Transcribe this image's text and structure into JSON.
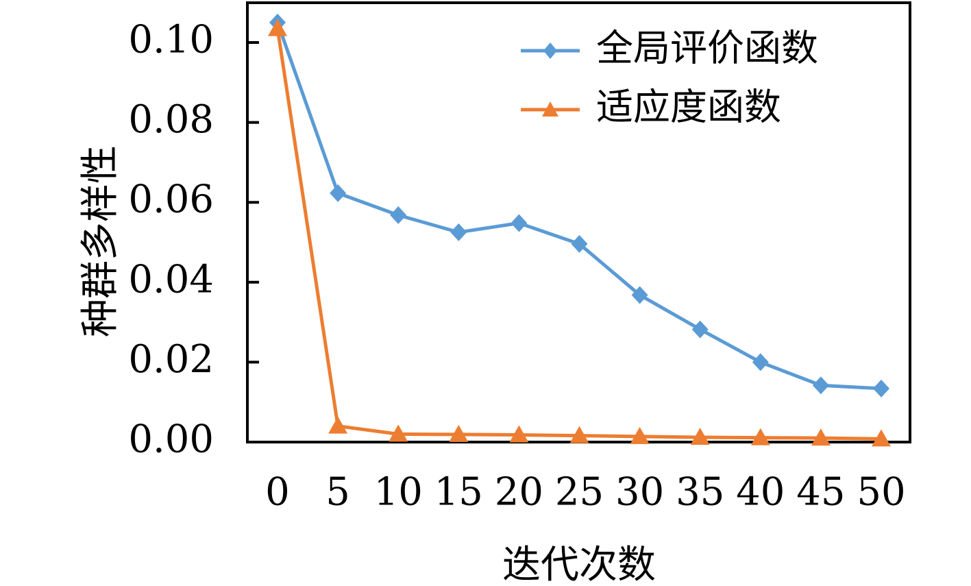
{
  "chart_data": {
    "type": "line",
    "xlabel": "迭代次数",
    "ylabel": "种群多样性",
    "x": [
      0,
      5,
      10,
      15,
      20,
      25,
      30,
      35,
      40,
      45,
      50
    ],
    "x_tick_labels": [
      "0",
      "5",
      "10",
      "15",
      "20",
      "25",
      "30",
      "35",
      "40",
      "45",
      "50"
    ],
    "y_tick_labels": [
      "0.00",
      "0.02",
      "0.04",
      "0.06",
      "0.08",
      "0.10"
    ],
    "y_ticks": [
      0,
      0.02,
      0.04,
      0.06,
      0.08,
      0.1
    ],
    "xlim": [
      0,
      50
    ],
    "ylim": [
      0,
      0.11
    ],
    "grid": false,
    "legend_position": "top-right",
    "series": [
      {
        "name": "全局评价函数",
        "color": "#5b9bd5",
        "marker": "diamond",
        "values": [
          0.105,
          0.0623,
          0.0568,
          0.0525,
          0.0548,
          0.0496,
          0.0368,
          0.0282,
          0.02,
          0.0142,
          0.0134
        ]
      },
      {
        "name": "适应度函数",
        "color": "#ed7d31",
        "marker": "triangle",
        "values": [
          0.1035,
          0.004,
          0.002,
          0.0019,
          0.0018,
          0.0016,
          0.0014,
          0.0012,
          0.0011,
          0.001,
          0.0008
        ]
      }
    ]
  }
}
